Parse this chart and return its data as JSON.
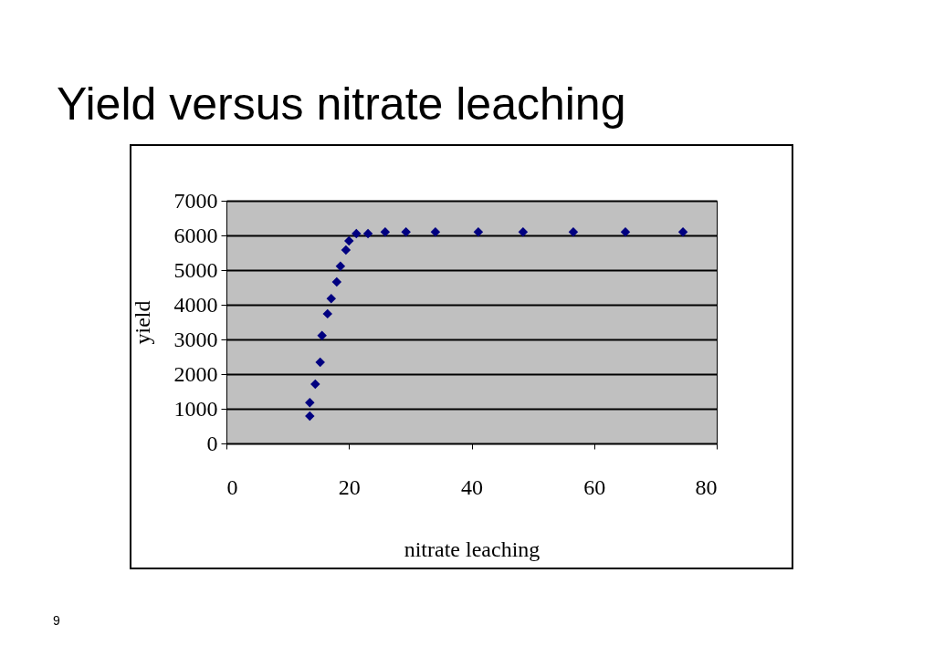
{
  "chart_data": {
    "type": "scatter",
    "title": "Yield versus nitrate leaching",
    "xlabel": "nitrate leaching",
    "ylabel": "yield",
    "x": [
      13.6,
      13.6,
      14.5,
      15.3,
      15.6,
      16.5,
      17.1,
      18.0,
      18.6,
      19.5,
      20.0,
      21.2,
      23.1,
      25.9,
      29.3,
      34.1,
      41.1,
      48.4,
      56.6,
      65.1,
      74.5
    ],
    "series": [
      {
        "color": "#000080",
        "values": [
          790,
          1180,
          1710,
          2340,
          3110,
          3740,
          4180,
          4660,
          5110,
          5580,
          5840,
          6050,
          6050,
          6100,
          6100,
          6100,
          6100,
          6100,
          6100,
          6100,
          6100
        ]
      }
    ],
    "xlim": [
      0,
      80
    ],
    "xticks": [
      0,
      20,
      40,
      60,
      80
    ],
    "ylim": [
      0,
      7000
    ],
    "yticks": [
      0,
      1000,
      2000,
      3000,
      4000,
      5000,
      6000,
      7000
    ],
    "grid": "y",
    "marker": "diamond",
    "legend": false,
    "annotations": [
      "9"
    ]
  }
}
